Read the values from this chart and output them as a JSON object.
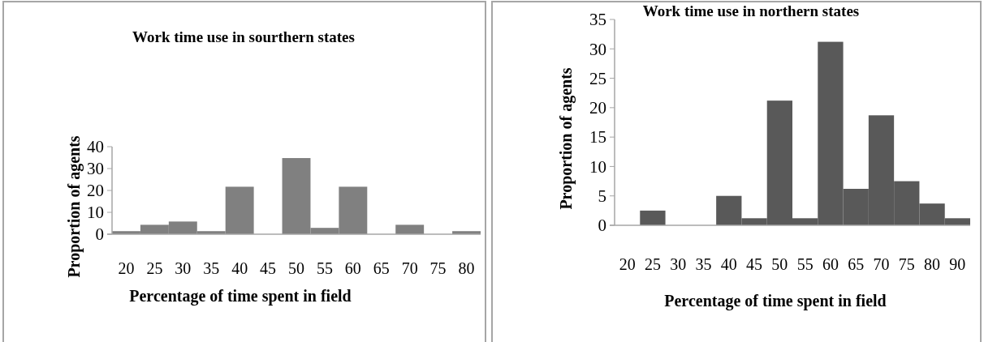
{
  "chart_data": [
    {
      "type": "bar",
      "title": "Work time use in sourthern states",
      "xlabel": "Percentage of time spent in field",
      "ylabel": "Proportion of agents",
      "categories": [
        "20",
        "25",
        "30",
        "35",
        "40",
        "45",
        "50",
        "55",
        "60",
        "65",
        "70",
        "75",
        "80"
      ],
      "series": [
        {
          "color": "#808080",
          "values": [
            1.4,
            4.3,
            5.8,
            1.4,
            21.7,
            0,
            34.8,
            2.9,
            21.7,
            0,
            4.3,
            0,
            1.4
          ]
        }
      ],
      "ylim": [
        0,
        40
      ],
      "yticks": [
        0,
        10,
        20,
        30,
        40
      ],
      "grid": false
    },
    {
      "type": "bar",
      "title": "Work time use in northern states",
      "xlabel": "Percentage of time spent in field",
      "ylabel": "Proportion of agents",
      "categories": [
        "20",
        "25",
        "30",
        "35",
        "40",
        "45",
        "50",
        "55",
        "60",
        "65",
        "70",
        "75",
        "80",
        "90"
      ],
      "series": [
        {
          "color": "#595959",
          "values": [
            0,
            2.5,
            0,
            0,
            5,
            1.2,
            21.2,
            1.2,
            31.2,
            6.2,
            18.7,
            7.5,
            3.7,
            1.2
          ]
        }
      ],
      "ylim": [
        0,
        35
      ],
      "yticks": [
        0,
        5,
        10,
        15,
        20,
        25,
        30,
        35
      ],
      "grid": false
    }
  ]
}
